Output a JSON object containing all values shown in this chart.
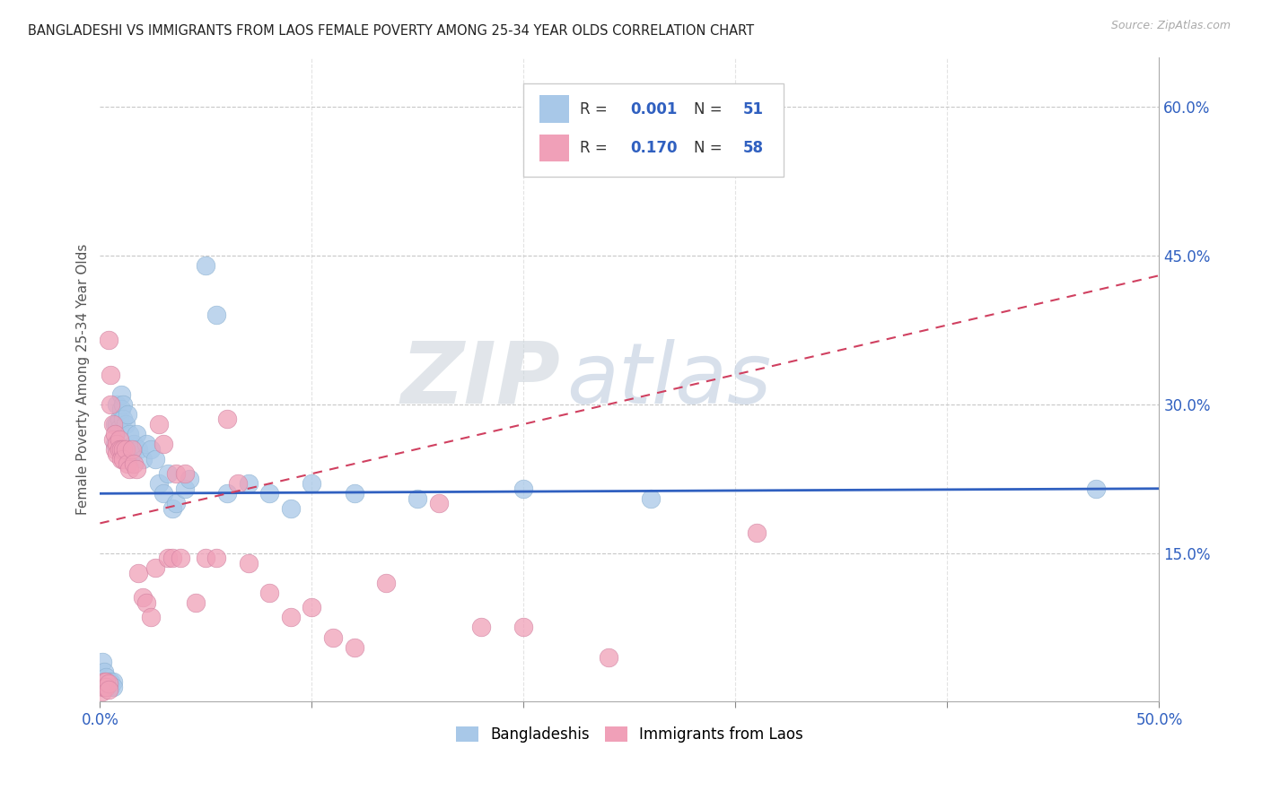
{
  "title": "BANGLADESHI VS IMMIGRANTS FROM LAOS FEMALE POVERTY AMONG 25-34 YEAR OLDS CORRELATION CHART",
  "source": "Source: ZipAtlas.com",
  "ylabel": "Female Poverty Among 25-34 Year Olds",
  "xlim": [
    0.0,
    0.5
  ],
  "ylim": [
    0.0,
    0.65
  ],
  "x_tick_positions": [
    0.0,
    0.1,
    0.2,
    0.3,
    0.4,
    0.5
  ],
  "x_tick_labels": [
    "0.0%",
    "",
    "",
    "",
    "",
    "50.0%"
  ],
  "y_ticks_right": [
    0.15,
    0.3,
    0.45,
    0.6
  ],
  "y_tick_labels_right": [
    "15.0%",
    "30.0%",
    "45.0%",
    "60.0%"
  ],
  "color_blue": "#a8c8e8",
  "color_pink": "#f0a0b8",
  "trendline_blue_color": "#3060c0",
  "trendline_pink_color": "#d04060",
  "grid_color": "#c8c8c8",
  "watermark_zip": "ZIP",
  "watermark_atlas": "atlas",
  "watermark_zip_color": "#d0d8e0",
  "watermark_atlas_color": "#c0d0e8",
  "blue_points": [
    [
      0.001,
      0.04
    ],
    [
      0.002,
      0.03
    ],
    [
      0.002,
      0.02
    ],
    [
      0.003,
      0.025
    ],
    [
      0.003,
      0.02
    ],
    [
      0.004,
      0.02
    ],
    [
      0.004,
      0.015
    ],
    [
      0.005,
      0.02
    ],
    [
      0.005,
      0.015
    ],
    [
      0.006,
      0.02
    ],
    [
      0.006,
      0.015
    ],
    [
      0.007,
      0.26
    ],
    [
      0.007,
      0.28
    ],
    [
      0.008,
      0.3
    ],
    [
      0.008,
      0.28
    ],
    [
      0.009,
      0.285
    ],
    [
      0.009,
      0.275
    ],
    [
      0.01,
      0.31
    ],
    [
      0.01,
      0.295
    ],
    [
      0.011,
      0.3
    ],
    [
      0.011,
      0.285
    ],
    [
      0.012,
      0.28
    ],
    [
      0.013,
      0.29
    ],
    [
      0.014,
      0.27
    ],
    [
      0.015,
      0.25
    ],
    [
      0.016,
      0.26
    ],
    [
      0.017,
      0.27
    ],
    [
      0.018,
      0.255
    ],
    [
      0.02,
      0.245
    ],
    [
      0.022,
      0.26
    ],
    [
      0.024,
      0.255
    ],
    [
      0.026,
      0.245
    ],
    [
      0.028,
      0.22
    ],
    [
      0.03,
      0.21
    ],
    [
      0.032,
      0.23
    ],
    [
      0.034,
      0.195
    ],
    [
      0.036,
      0.2
    ],
    [
      0.04,
      0.215
    ],
    [
      0.042,
      0.225
    ],
    [
      0.05,
      0.44
    ],
    [
      0.055,
      0.39
    ],
    [
      0.06,
      0.21
    ],
    [
      0.07,
      0.22
    ],
    [
      0.08,
      0.21
    ],
    [
      0.09,
      0.195
    ],
    [
      0.1,
      0.22
    ],
    [
      0.12,
      0.21
    ],
    [
      0.15,
      0.205
    ],
    [
      0.2,
      0.215
    ],
    [
      0.26,
      0.205
    ],
    [
      0.47,
      0.215
    ]
  ],
  "pink_points": [
    [
      0.001,
      0.015
    ],
    [
      0.001,
      0.01
    ],
    [
      0.002,
      0.02
    ],
    [
      0.002,
      0.015
    ],
    [
      0.003,
      0.02
    ],
    [
      0.003,
      0.015
    ],
    [
      0.004,
      0.018
    ],
    [
      0.004,
      0.012
    ],
    [
      0.004,
      0.365
    ],
    [
      0.005,
      0.33
    ],
    [
      0.005,
      0.3
    ],
    [
      0.006,
      0.28
    ],
    [
      0.006,
      0.265
    ],
    [
      0.007,
      0.27
    ],
    [
      0.007,
      0.255
    ],
    [
      0.008,
      0.26
    ],
    [
      0.008,
      0.25
    ],
    [
      0.009,
      0.265
    ],
    [
      0.009,
      0.255
    ],
    [
      0.01,
      0.255
    ],
    [
      0.01,
      0.245
    ],
    [
      0.011,
      0.255
    ],
    [
      0.011,
      0.245
    ],
    [
      0.012,
      0.255
    ],
    [
      0.013,
      0.24
    ],
    [
      0.014,
      0.235
    ],
    [
      0.015,
      0.255
    ],
    [
      0.016,
      0.24
    ],
    [
      0.017,
      0.235
    ],
    [
      0.018,
      0.13
    ],
    [
      0.02,
      0.105
    ],
    [
      0.022,
      0.1
    ],
    [
      0.024,
      0.085
    ],
    [
      0.026,
      0.135
    ],
    [
      0.028,
      0.28
    ],
    [
      0.03,
      0.26
    ],
    [
      0.032,
      0.145
    ],
    [
      0.034,
      0.145
    ],
    [
      0.036,
      0.23
    ],
    [
      0.038,
      0.145
    ],
    [
      0.04,
      0.23
    ],
    [
      0.045,
      0.1
    ],
    [
      0.05,
      0.145
    ],
    [
      0.055,
      0.145
    ],
    [
      0.06,
      0.285
    ],
    [
      0.065,
      0.22
    ],
    [
      0.07,
      0.14
    ],
    [
      0.08,
      0.11
    ],
    [
      0.09,
      0.085
    ],
    [
      0.1,
      0.095
    ],
    [
      0.11,
      0.065
    ],
    [
      0.12,
      0.055
    ],
    [
      0.135,
      0.12
    ],
    [
      0.16,
      0.2
    ],
    [
      0.18,
      0.075
    ],
    [
      0.2,
      0.075
    ],
    [
      0.24,
      0.045
    ],
    [
      0.31,
      0.17
    ]
  ],
  "blue_trendline_y_start": 0.21,
  "blue_trendline_y_end": 0.215,
  "pink_trendline_x_start": 0.0,
  "pink_trendline_y_start": 0.18,
  "pink_trendline_x_end": 0.5,
  "pink_trendline_y_end": 0.43
}
